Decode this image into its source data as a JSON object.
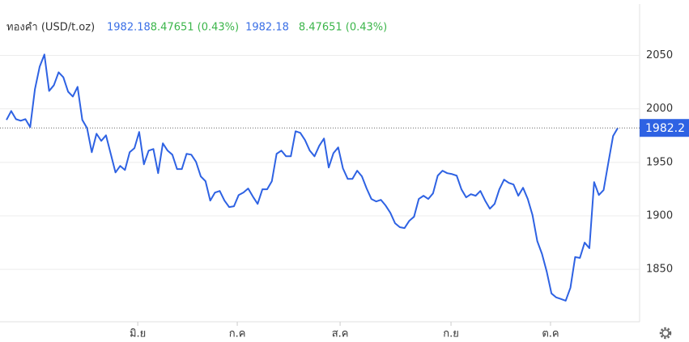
{
  "chart_data": {
    "type": "line",
    "title": "ทองคำ (USD/t.oz)",
    "legend_values": [
      {
        "price": "1982.18",
        "change": "8.47651 (0.43%)"
      },
      {
        "price": "1982.18",
        "change": "8.47651 (0.43%)"
      }
    ],
    "color": "#2e62e3",
    "values": [
      1989.7,
      1998.0,
      1990.4,
      1988.9,
      1990.4,
      1982.9,
      2018.3,
      2039.4,
      2050.8,
      2016.8,
      2022.1,
      2034.2,
      2029.6,
      2016.1,
      2011.5,
      2020.6,
      1989.7,
      1982.1,
      1959.5,
      1976.8,
      1970.1,
      1975.3,
      1958.0,
      1940.6,
      1946.7,
      1942.9,
      1959.5,
      1963.3,
      1978.4,
      1948.2,
      1961.0,
      1962.5,
      1939.9,
      1967.8,
      1961.0,
      1957.2,
      1943.7,
      1943.7,
      1958.0,
      1957.2,
      1950.5,
      1936.9,
      1932.4,
      1914.3,
      1921.8,
      1923.3,
      1914.3,
      1908.2,
      1909.0,
      1919.5,
      1921.8,
      1925.6,
      1918.0,
      1911.2,
      1924.8,
      1924.8,
      1932.4,
      1958.0,
      1961.0,
      1955.7,
      1955.7,
      1979.1,
      1977.6,
      1970.8,
      1961.0,
      1955.7,
      1965.5,
      1972.3,
      1945.2,
      1958.7,
      1964.0,
      1944.4,
      1934.6,
      1934.6,
      1942.2,
      1936.9,
      1925.6,
      1915.8,
      1913.5,
      1915.0,
      1909.7,
      1902.9,
      1893.1,
      1889.4,
      1888.6,
      1895.4,
      1899.2,
      1915.8,
      1918.8,
      1915.8,
      1921.0,
      1937.6,
      1942.2,
      1939.9,
      1939.1,
      1937.6,
      1924.8,
      1917.3,
      1920.3,
      1918.8,
      1923.3,
      1914.3,
      1906.7,
      1911.2,
      1924.8,
      1933.9,
      1930.8,
      1929.3,
      1918.8,
      1926.3,
      1915.8,
      1900.7,
      1876.5,
      1864.5,
      1847.9,
      1827.5,
      1823.8,
      1822.3,
      1820.7,
      1832.8,
      1861.5,
      1860.7,
      1875.0,
      1869.8,
      1931.6,
      1919.5,
      1924.1,
      1949.7,
      1974.6,
      1982.2
    ],
    "xlim": [
      0,
      133.6
    ],
    "xticks": [
      {
        "value": 27.7,
        "label": "มิ.ย"
      },
      {
        "value": 48.7,
        "label": "ก.ค"
      },
      {
        "value": 70.4,
        "label": "ส.ค"
      },
      {
        "value": 93.8,
        "label": "ก.ย"
      },
      {
        "value": 114.8,
        "label": "ต.ค"
      }
    ],
    "ylim": [
      1801,
      2098
    ],
    "yticks": [
      1850,
      1900,
      1950,
      2000,
      2050
    ],
    "last_price": {
      "value": 1982.2,
      "label": "1982.2"
    },
    "grid": true
  }
}
